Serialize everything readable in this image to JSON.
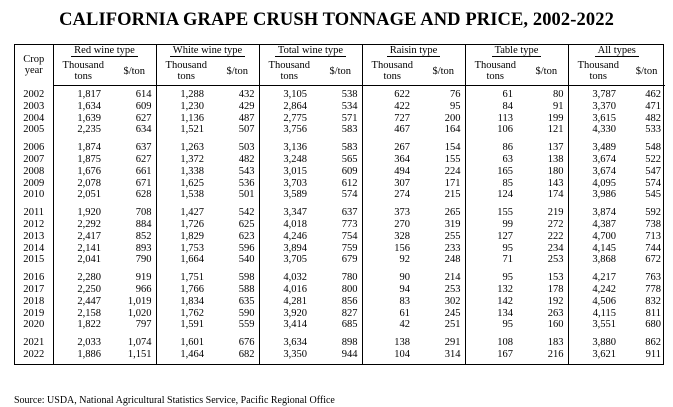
{
  "title": "CALIFORNIA GRAPE CRUSH TONNAGE AND PRICE, 2002-2022",
  "header": {
    "crop_year": [
      "Crop",
      "year"
    ],
    "groups": [
      "Red wine type",
      "White wine type",
      "Total wine type",
      "Raisin type",
      "Table type",
      "All types"
    ],
    "sub_tons": [
      "Thousand",
      "tons"
    ],
    "sub_price": "$/ton"
  },
  "blocks": [
    [
      [
        "2002",
        "1,817",
        "614",
        "1,288",
        "432",
        "3,105",
        "538",
        "622",
        "76",
        "61",
        "80",
        "3,787",
        "462"
      ],
      [
        "2003",
        "1,634",
        "609",
        "1,230",
        "429",
        "2,864",
        "534",
        "422",
        "95",
        "84",
        "91",
        "3,370",
        "471"
      ],
      [
        "2004",
        "1,639",
        "627",
        "1,136",
        "487",
        "2,775",
        "571",
        "727",
        "200",
        "113",
        "199",
        "3,615",
        "482"
      ],
      [
        "2005",
        "2,235",
        "634",
        "1,521",
        "507",
        "3,756",
        "583",
        "467",
        "164",
        "106",
        "121",
        "4,330",
        "533"
      ]
    ],
    [
      [
        "2006",
        "1,874",
        "637",
        "1,263",
        "503",
        "3,136",
        "583",
        "267",
        "154",
        "86",
        "137",
        "3,489",
        "548"
      ],
      [
        "2007",
        "1,875",
        "627",
        "1,372",
        "482",
        "3,248",
        "565",
        "364",
        "155",
        "63",
        "138",
        "3,674",
        "522"
      ],
      [
        "2008",
        "1,676",
        "661",
        "1,338",
        "543",
        "3,015",
        "609",
        "494",
        "224",
        "165",
        "180",
        "3,674",
        "547"
      ],
      [
        "2009",
        "2,078",
        "671",
        "1,625",
        "536",
        "3,703",
        "612",
        "307",
        "171",
        "85",
        "143",
        "4,095",
        "574"
      ],
      [
        "2010",
        "2,051",
        "628",
        "1,538",
        "501",
        "3,589",
        "574",
        "274",
        "215",
        "124",
        "174",
        "3,986",
        "545"
      ]
    ],
    [
      [
        "2011",
        "1,920",
        "708",
        "1,427",
        "542",
        "3,347",
        "637",
        "373",
        "265",
        "155",
        "219",
        "3,874",
        "592"
      ],
      [
        "2012",
        "2,292",
        "884",
        "1,726",
        "625",
        "4,018",
        "773",
        "270",
        "319",
        "99",
        "272",
        "4,387",
        "738"
      ],
      [
        "2013",
        "2,417",
        "852",
        "1,829",
        "623",
        "4,246",
        "754",
        "328",
        "255",
        "127",
        "222",
        "4,700",
        "713"
      ],
      [
        "2014",
        "2,141",
        "893",
        "1,753",
        "596",
        "3,894",
        "759",
        "156",
        "233",
        "95",
        "234",
        "4,145",
        "744"
      ],
      [
        "2015",
        "2,041",
        "790",
        "1,664",
        "540",
        "3,705",
        "679",
        "92",
        "248",
        "71",
        "253",
        "3,868",
        "672"
      ]
    ],
    [
      [
        "2016",
        "2,280",
        "919",
        "1,751",
        "598",
        "4,032",
        "780",
        "90",
        "214",
        "95",
        "153",
        "4,217",
        "763"
      ],
      [
        "2017",
        "2,250",
        "966",
        "1,766",
        "588",
        "4,016",
        "800",
        "94",
        "253",
        "132",
        "178",
        "4,242",
        "778"
      ],
      [
        "2018",
        "2,447",
        "1,019",
        "1,834",
        "635",
        "4,281",
        "856",
        "83",
        "302",
        "142",
        "192",
        "4,506",
        "832"
      ],
      [
        "2019",
        "2,158",
        "1,020",
        "1,762",
        "590",
        "3,920",
        "827",
        "61",
        "245",
        "134",
        "263",
        "4,115",
        "811"
      ],
      [
        "2020",
        "1,822",
        "797",
        "1,591",
        "559",
        "3,414",
        "685",
        "42",
        "251",
        "95",
        "160",
        "3,551",
        "680"
      ]
    ],
    [
      [
        "2021",
        "2,033",
        "1,074",
        "1,601",
        "676",
        "3,634",
        "898",
        "138",
        "291",
        "108",
        "183",
        "3,880",
        "862"
      ],
      [
        "2022",
        "1,886",
        "1,151",
        "1,464",
        "682",
        "3,350",
        "944",
        "104",
        "314",
        "167",
        "216",
        "3,621",
        "911"
      ]
    ]
  ],
  "source": "Source:  USDA, National Agricultural Statistics Service, Pacific Regional Office"
}
